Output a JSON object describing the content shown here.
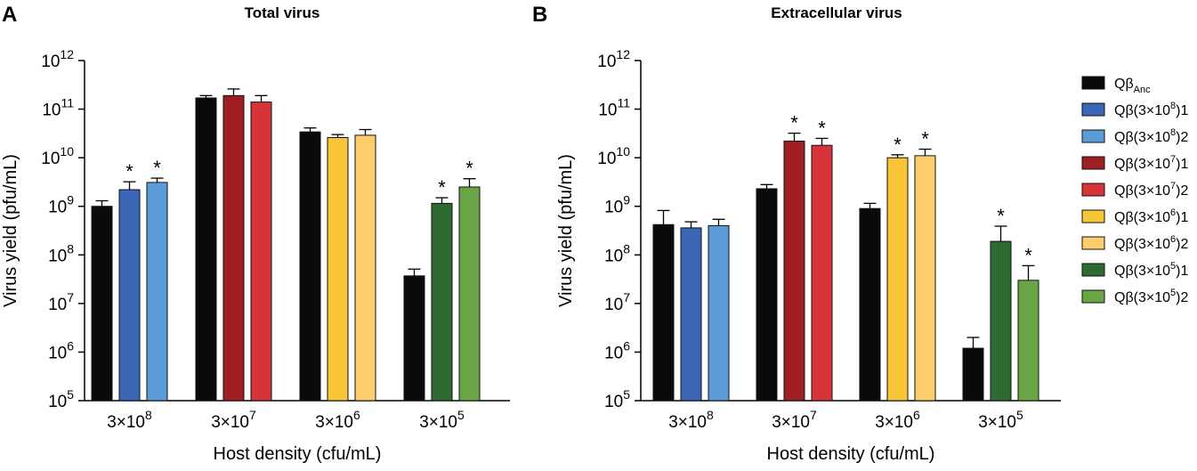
{
  "colors": {
    "anc": "#0a0a0a",
    "q_3e8_1": "#3b66b5",
    "q_3e8_2": "#5b9bd8",
    "q_3e7_1": "#9e1e22",
    "q_3e7_2": "#d7343a",
    "q_3e6_1": "#f7c535",
    "q_3e6_2": "#fccd6a",
    "q_3e5_1": "#2f6a32",
    "q_3e5_2": "#6aa545"
  },
  "legend": {
    "entries": [
      {
        "key": "anc",
        "base": "Qβ",
        "sub": "Anc",
        "mid": "",
        "sup": "",
        "tail": ""
      },
      {
        "key": "q_3e8_1",
        "base": "Qβ",
        "sub": "",
        "mid": "(3×10",
        "sup": "8",
        "tail": ")1"
      },
      {
        "key": "q_3e8_2",
        "base": "Qβ",
        "sub": "",
        "mid": "(3×10",
        "sup": "8",
        "tail": ")2"
      },
      {
        "key": "q_3e7_1",
        "base": "Qβ",
        "sub": "",
        "mid": "(3×10",
        "sup": "7",
        "tail": ")1"
      },
      {
        "key": "q_3e7_2",
        "base": "Qβ",
        "sub": "",
        "mid": "(3×10",
        "sup": "7",
        "tail": ")2"
      },
      {
        "key": "q_3e6_1",
        "base": "Qβ",
        "sub": "",
        "mid": "(3×10",
        "sup": "6",
        "tail": ")1"
      },
      {
        "key": "q_3e6_2",
        "base": "Qβ",
        "sub": "",
        "mid": "(3×10",
        "sup": "6",
        "tail": ")2"
      },
      {
        "key": "q_3e5_1",
        "base": "Qβ",
        "sub": "",
        "mid": "(3×10",
        "sup": "5",
        "tail": ")1"
      },
      {
        "key": "q_3e5_2",
        "base": "Qβ",
        "sub": "",
        "mid": "(3×10",
        "sup": "5",
        "tail": ")2"
      }
    ]
  },
  "chart_data": [
    {
      "type": "bar",
      "panel": "A",
      "title": "Total virus",
      "xlabel": "Host density (cfu/mL)",
      "ylabel": "Virus yield (pfu/mL)",
      "yscale": "log",
      "ylim": [
        100000,
        1000000000000
      ],
      "yticks": [
        {
          "base": "10",
          "exp": "5"
        },
        {
          "base": "10",
          "exp": "6"
        },
        {
          "base": "10",
          "exp": "7"
        },
        {
          "base": "10",
          "exp": "8"
        },
        {
          "base": "10",
          "exp": "9"
        },
        {
          "base": "10",
          "exp": "10"
        },
        {
          "base": "10",
          "exp": "11"
        },
        {
          "base": "10",
          "exp": "12"
        }
      ],
      "groups": [
        {
          "label_base": "3×10",
          "label_exp": "8",
          "bars": [
            {
              "key": "anc",
              "value": 1000000000,
              "err": 300000000,
              "star": false
            },
            {
              "key": "q_3e8_1",
              "value": 2200000000,
              "err": 1000000000,
              "star": true
            },
            {
              "key": "q_3e8_2",
              "value": 3100000000,
              "err": 700000000,
              "star": true
            }
          ]
        },
        {
          "label_base": "3×10",
          "label_exp": "7",
          "bars": [
            {
              "key": "anc",
              "value": 170000000000,
              "err": 20000000000,
              "star": false
            },
            {
              "key": "q_3e7_1",
              "value": 190000000000,
              "err": 70000000000,
              "star": false
            },
            {
              "key": "q_3e7_2",
              "value": 140000000000,
              "err": 50000000000,
              "star": false
            }
          ]
        },
        {
          "label_base": "3×10",
          "label_exp": "6",
          "bars": [
            {
              "key": "anc",
              "value": 34000000000,
              "err": 7000000000,
              "star": false
            },
            {
              "key": "q_3e6_1",
              "value": 26000000000,
              "err": 4000000000,
              "star": false
            },
            {
              "key": "q_3e6_2",
              "value": 29000000000,
              "err": 9000000000,
              "star": false
            }
          ]
        },
        {
          "label_base": "3×10",
          "label_exp": "5",
          "bars": [
            {
              "key": "anc",
              "value": 37000000,
              "err": 14000000,
              "star": false
            },
            {
              "key": "q_3e5_1",
              "value": 1150000000,
              "err": 350000000,
              "star": true
            },
            {
              "key": "q_3e5_2",
              "value": 2500000000,
              "err": 1200000000,
              "star": true
            }
          ]
        }
      ]
    },
    {
      "type": "bar",
      "panel": "B",
      "title": "Extracellular virus",
      "xlabel": "Host density (cfu/mL)",
      "ylabel": "Virus yield (pfu/mL)",
      "yscale": "log",
      "ylim": [
        100000,
        1000000000000
      ],
      "yticks": [
        {
          "base": "10",
          "exp": "5"
        },
        {
          "base": "10",
          "exp": "6"
        },
        {
          "base": "10",
          "exp": "7"
        },
        {
          "base": "10",
          "exp": "8"
        },
        {
          "base": "10",
          "exp": "9"
        },
        {
          "base": "10",
          "exp": "10"
        },
        {
          "base": "10",
          "exp": "11"
        },
        {
          "base": "10",
          "exp": "12"
        }
      ],
      "groups": [
        {
          "label_base": "3×10",
          "label_exp": "8",
          "bars": [
            {
              "key": "anc",
              "value": 420000000,
              "err": 400000000,
              "star": false
            },
            {
              "key": "q_3e8_1",
              "value": 360000000,
              "err": 120000000,
              "star": false
            },
            {
              "key": "q_3e8_2",
              "value": 400000000,
              "err": 140000000,
              "star": false
            }
          ]
        },
        {
          "label_base": "3×10",
          "label_exp": "7",
          "bars": [
            {
              "key": "anc",
              "value": 2300000000,
              "err": 500000000,
              "star": false
            },
            {
              "key": "q_3e7_1",
              "value": 22000000000,
              "err": 10000000000,
              "star": true
            },
            {
              "key": "q_3e7_2",
              "value": 18000000000,
              "err": 7000000000,
              "star": true
            }
          ]
        },
        {
          "label_base": "3×10",
          "label_exp": "6",
          "bars": [
            {
              "key": "anc",
              "value": 900000000,
              "err": 250000000,
              "star": false
            },
            {
              "key": "q_3e6_1",
              "value": 10000000000,
              "err": 1500000000,
              "star": true
            },
            {
              "key": "q_3e6_2",
              "value": 11000000000,
              "err": 4000000000,
              "star": true
            }
          ]
        },
        {
          "label_base": "3×10",
          "label_exp": "5",
          "bars": [
            {
              "key": "anc",
              "value": 1200000,
              "err": 800000,
              "star": false
            },
            {
              "key": "q_3e5_1",
              "value": 190000000,
              "err": 200000000,
              "star": true
            },
            {
              "key": "q_3e5_2",
              "value": 30000000,
              "err": 30000000,
              "star": true
            }
          ]
        }
      ]
    }
  ]
}
